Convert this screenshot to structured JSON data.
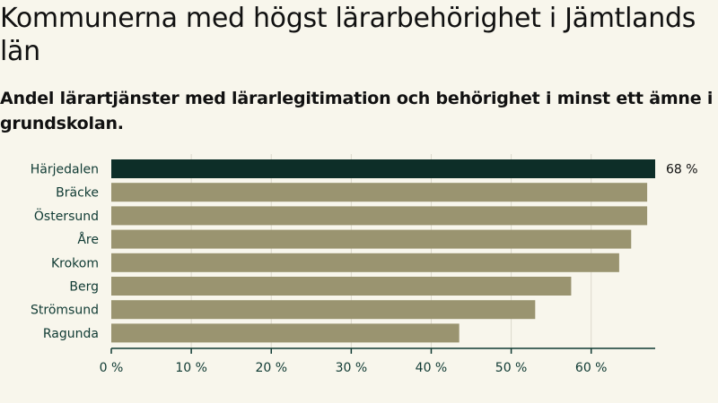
{
  "header": {
    "title": "Kommunerna med högst lärarbehörighet i Jämtlands län",
    "subtitle": "Andel lärartjänster med lärarlegitimation och behörighet i minst ett ämne i grundskolan."
  },
  "colors": {
    "background": "#f8f6ec",
    "highlight_bar": "#0d2e28",
    "bar": "#9a9470",
    "axis": "#0f3a33",
    "grid": "#dcd9cc",
    "label": "#0f3a33"
  },
  "chart_data": {
    "type": "bar",
    "orientation": "horizontal",
    "title": "Kommunerna med högst lärarbehörighet i Jämtlands län",
    "subtitle": "Andel lärartjänster med lärarlegitimation och behörighet i minst ett ämne i grundskolan.",
    "categories": [
      "Härjedalen",
      "Bräcke",
      "Östersund",
      "Åre",
      "Krokom",
      "Berg",
      "Strömsund",
      "Ragunda"
    ],
    "values": [
      68,
      67,
      67,
      65,
      63.5,
      57.5,
      53,
      43.5
    ],
    "highlight_index": 0,
    "data_labels": [
      {
        "index": 0,
        "text": "68 %"
      }
    ],
    "xlim": [
      0,
      68
    ],
    "xticks": [
      0,
      10,
      20,
      30,
      40,
      50,
      60
    ],
    "xtick_labels": [
      "0 %",
      "10 %",
      "20 %",
      "30 %",
      "40 %",
      "50 %",
      "60 %"
    ],
    "xlabel": "",
    "ylabel": "",
    "grid": true
  }
}
